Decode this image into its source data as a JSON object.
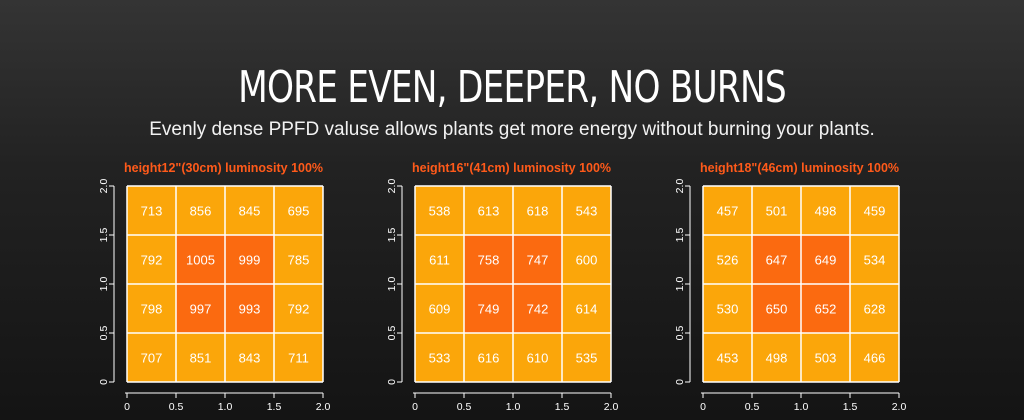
{
  "header": {
    "title": "MORE EVEN, DEEPER, NO BURNS",
    "subtitle": "Evenly dense PPFD valuse allows plants get more energy without burning your plants."
  },
  "colors": {
    "cell_normal": "#fba60a",
    "cell_center": "#fb6a10",
    "grid": "#ffffff",
    "label": "#ff5a1a"
  },
  "chart_data": [
    {
      "type": "heatmap",
      "title": "height12\"(30cm)  luminosity 100%",
      "x_ticks": [
        "0",
        "0.5",
        "1.0",
        "1.5",
        "2.0"
      ],
      "y_ticks": [
        "0",
        "0.5",
        "1.0",
        "1.5",
        "2.0"
      ],
      "xlim": [
        0,
        2
      ],
      "ylim": [
        0,
        2
      ],
      "rows_top_to_bottom": [
        [
          713,
          856,
          845,
          695
        ],
        [
          792,
          1005,
          999,
          785
        ],
        [
          798,
          997,
          993,
          792
        ],
        [
          707,
          851,
          843,
          711
        ]
      ]
    },
    {
      "type": "heatmap",
      "title": "height16\"(41cm)  luminosity 100%",
      "x_ticks": [
        "0",
        "0.5",
        "1.0",
        "1.5",
        "2.0"
      ],
      "y_ticks": [
        "0",
        "0.5",
        "1.0",
        "1.5",
        "2.0"
      ],
      "xlim": [
        0,
        2
      ],
      "ylim": [
        0,
        2
      ],
      "rows_top_to_bottom": [
        [
          538,
          613,
          618,
          543
        ],
        [
          611,
          758,
          747,
          600
        ],
        [
          609,
          749,
          742,
          614
        ],
        [
          533,
          616,
          610,
          535
        ]
      ]
    },
    {
      "type": "heatmap",
      "title": "height18\"(46cm)  luminosity 100%",
      "x_ticks": [
        "0",
        "0.5",
        "1.0",
        "1.5",
        "2.0"
      ],
      "y_ticks": [
        "0",
        "0.5",
        "1.0",
        "1.5",
        "2.0"
      ],
      "xlim": [
        0,
        2
      ],
      "ylim": [
        0,
        2
      ],
      "rows_top_to_bottom": [
        [
          457,
          501,
          498,
          459
        ],
        [
          526,
          647,
          649,
          534
        ],
        [
          530,
          650,
          652,
          628
        ],
        [
          453,
          498,
          503,
          466
        ]
      ]
    }
  ]
}
